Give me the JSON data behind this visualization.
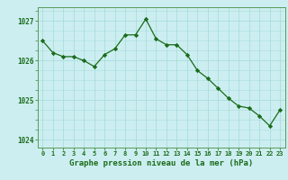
{
  "hours": [
    0,
    1,
    2,
    3,
    4,
    5,
    6,
    7,
    8,
    9,
    10,
    11,
    12,
    13,
    14,
    15,
    16,
    17,
    18,
    19,
    20,
    21,
    22,
    23
  ],
  "pressure": [
    1026.5,
    1026.2,
    1026.1,
    1026.1,
    1026.0,
    1025.85,
    1026.15,
    1026.3,
    1026.65,
    1026.65,
    1027.05,
    1026.55,
    1026.4,
    1026.4,
    1026.15,
    1025.75,
    1025.55,
    1025.3,
    1025.05,
    1024.85,
    1024.8,
    1024.6,
    1024.35,
    1024.75
  ],
  "line_color": "#1a6b1a",
  "marker": "D",
  "marker_size": 2.2,
  "bg_color": "#cceef0",
  "grid_color": "#aadddd",
  "xlabel": "Graphe pression niveau de la mer (hPa)",
  "xlabel_color": "#1a6b1a",
  "tick_color": "#1a6b1a",
  "spine_color": "#5a9a5a",
  "ylim": [
    1023.8,
    1027.35
  ],
  "yticks": [
    1024,
    1025,
    1026,
    1027
  ],
  "xticks": [
    0,
    1,
    2,
    3,
    4,
    5,
    6,
    7,
    8,
    9,
    10,
    11,
    12,
    13,
    14,
    15,
    16,
    17,
    18,
    19,
    20,
    21,
    22,
    23
  ],
  "xtick_labels": [
    "0",
    "1",
    "2",
    "3",
    "4",
    "5",
    "6",
    "7",
    "8",
    "9",
    "10",
    "11",
    "12",
    "13",
    "14",
    "15",
    "16",
    "17",
    "18",
    "19",
    "20",
    "21",
    "22",
    "23"
  ]
}
